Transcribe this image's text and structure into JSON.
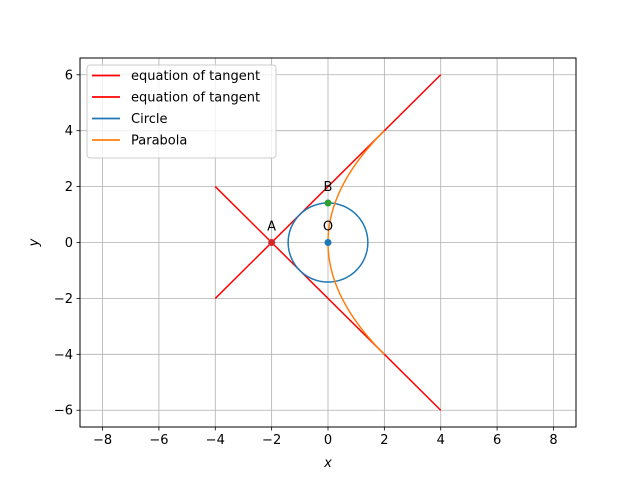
{
  "chart_data": {
    "type": "line",
    "title": "",
    "xlabel": "x",
    "ylabel": "y",
    "xlim": [
      -8.8,
      8.8
    ],
    "ylim": [
      -6.6,
      6.6
    ],
    "xticks": [
      -8,
      -6,
      -4,
      -2,
      0,
      2,
      4,
      6,
      8
    ],
    "yticks": [
      -6,
      -4,
      -2,
      0,
      2,
      4,
      6
    ],
    "xtick_labels": [
      "−8",
      "−6",
      "−4",
      "−2",
      "0",
      "2",
      "4",
      "6",
      "8"
    ],
    "ytick_labels": [
      "−6",
      "−4",
      "−2",
      "0",
      "2",
      "4",
      "6"
    ],
    "grid": true,
    "legend_position": "top-left",
    "series": [
      {
        "name": "equation of tangent",
        "kind": "line",
        "color": "#ff0000",
        "x": [
          -4,
          4
        ],
        "y": [
          -2,
          6
        ]
      },
      {
        "name": "equation of tangent",
        "kind": "line",
        "color": "#ff0000",
        "x": [
          -4,
          4
        ],
        "y": [
          2,
          -6
        ]
      },
      {
        "name": "Circle",
        "kind": "circle",
        "color": "#1f77b4",
        "center": [
          0,
          0
        ],
        "radius": 1.414
      },
      {
        "name": "Parabola",
        "kind": "parabola",
        "color": "#ff7f0e",
        "equation": "y^2 = 8x",
        "ymin": -4,
        "ymax": 4
      }
    ],
    "points": [
      {
        "label": "A",
        "x": -2,
        "y": 0,
        "color": "#d62728"
      },
      {
        "label": "B",
        "x": 0,
        "y": 1.414,
        "color": "#2ca02c"
      },
      {
        "label": "O",
        "x": 0,
        "y": 0,
        "color": "#1f77b4"
      }
    ]
  }
}
